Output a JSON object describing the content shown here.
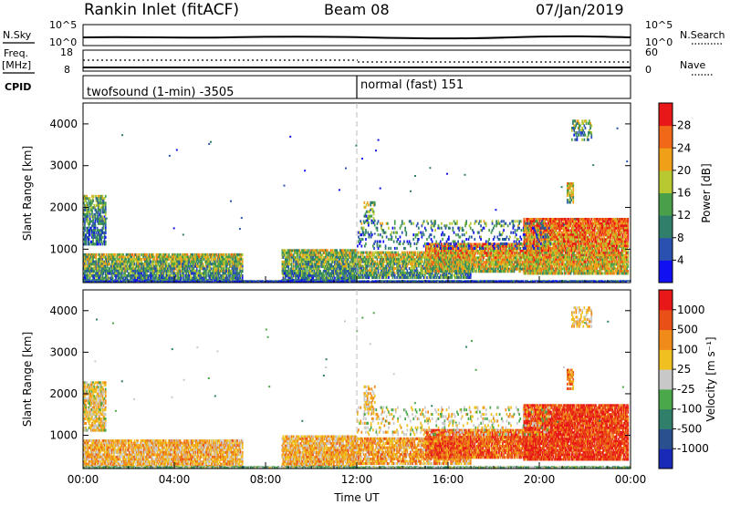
{
  "header": {
    "station": "Rankin Inlet (fitACF)",
    "beam": "Beam 08",
    "date": "07/Jan/2019"
  },
  "top_panels": {
    "nsky": {
      "label": "N.Sky",
      "tick_high": "10^5",
      "tick_low": "10^0",
      "right_label": "N.Search",
      "right_tick_high": "10^5",
      "right_tick_low": "10^0"
    },
    "freq": {
      "label_line1": "Freq.",
      "label_line2": "[MHz]",
      "tick_high": "18",
      "tick_low": "8",
      "right_label": "Nave",
      "right_tick_high": "60",
      "right_tick_low": "0"
    },
    "cpid": {
      "label": "CPID",
      "mode1": "twofsound (1-min) -3505",
      "mode2": "normal (fast) 151"
    }
  },
  "chart_data": [
    {
      "type": "heatmap",
      "name": "power",
      "ylabel": "Slant Range [km]",
      "yticks": [
        "1000",
        "2000",
        "3000",
        "4000"
      ],
      "ylim": [
        200,
        4500
      ],
      "colorbar_label": "Power [dB]",
      "colorbar_ticks": [
        "4",
        "8",
        "12",
        "16",
        "20",
        "24",
        "28"
      ],
      "colorbar_colors": [
        "#1010f0",
        "#2a50b0",
        "#2f7f6a",
        "#4aa04a",
        "#b8c830",
        "#f0a018",
        "#f06818",
        "#e81818"
      ]
    },
    {
      "type": "heatmap",
      "name": "velocity",
      "ylabel": "Slant Range [km]",
      "yticks": [
        "1000",
        "2000",
        "3000",
        "4000"
      ],
      "ylim": [
        200,
        4500
      ],
      "xlabel": "Time UT",
      "xticks": [
        "00:00",
        "04:00",
        "08:00",
        "12:00",
        "16:00",
        "20:00",
        "00:00"
      ],
      "colorbar_label": "Velocity [m s⁻¹]",
      "colorbar_ticks": [
        "1000",
        "500",
        "100",
        "25",
        "-25",
        "-100",
        "-500",
        "-1000"
      ],
      "colorbar_colors": [
        "#1a2ab8",
        "#2a5090",
        "#2f7f6a",
        "#4aa84a",
        "#c8c8c8",
        "#f0c020",
        "#f08a18",
        "#e85018",
        "#e81818"
      ]
    }
  ]
}
